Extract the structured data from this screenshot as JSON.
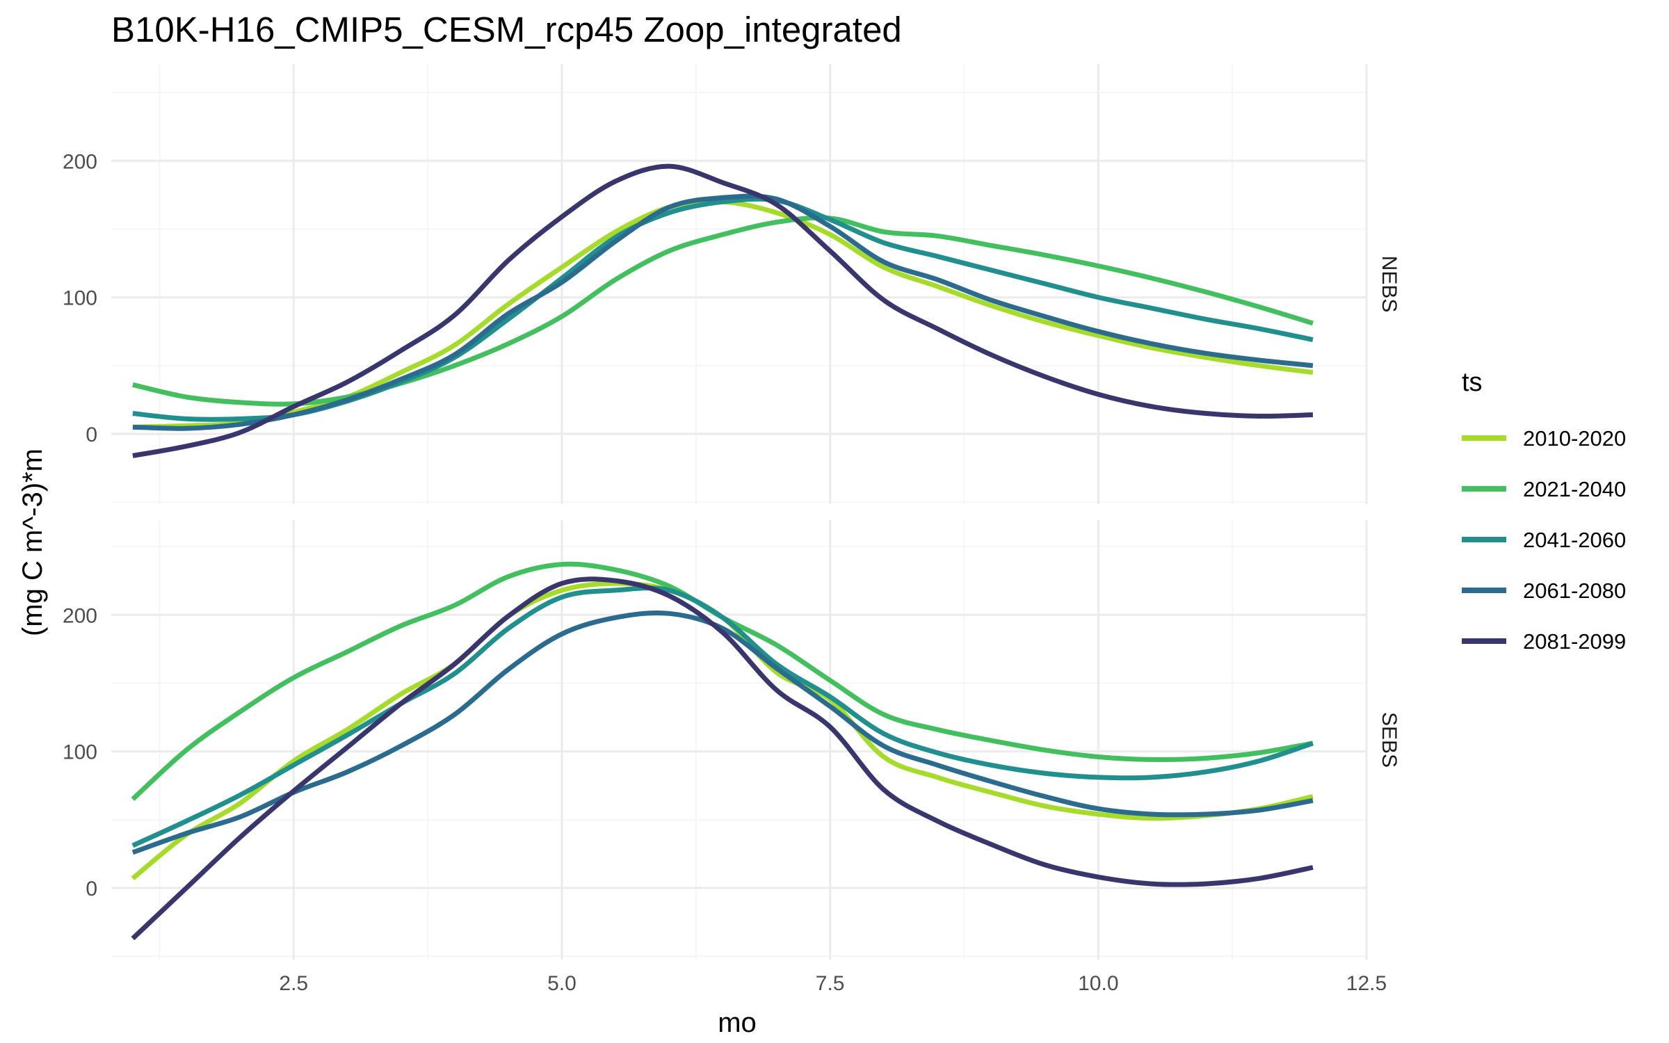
{
  "chart_data": {
    "type": "line",
    "title": "B10K-H16_CMIP5_CESM_rcp45 Zoop_integrated",
    "xlabel": "mo",
    "ylabel": "(mg C m^-3)*m",
    "xlim": [
      0.8,
      12.5
    ],
    "ylim": [
      -50,
      250
    ],
    "x_ticks": [
      2.5,
      5.0,
      7.5,
      10.0,
      12.5
    ],
    "x_tick_labels": [
      "2.5",
      "5.0",
      "7.5",
      "10.0",
      "12.5"
    ],
    "y_ticks": [
      0,
      100,
      200
    ],
    "y_tick_labels": [
      "0",
      "100",
      "200"
    ],
    "grid": true,
    "legend": {
      "title": "ts",
      "position": "right"
    },
    "x": [
      1,
      1.5,
      2,
      2.5,
      3,
      3.5,
      4,
      4.5,
      5,
      5.5,
      6,
      6.5,
      7,
      7.5,
      8,
      8.5,
      9,
      9.5,
      10,
      10.5,
      11,
      11.5,
      12
    ],
    "panels": [
      {
        "label": "NEBS",
        "series": [
          {
            "name": "2010-2020",
            "color": "#a6db2c",
            "values": [
              5,
              6,
              8,
              16,
              27,
              45,
              65,
              95,
              122,
              148,
              166,
              170,
              162,
              146,
              122,
              108,
              94,
              82,
              72,
              63,
              56,
              50,
              45
            ]
          },
          {
            "name": "2021-2040",
            "color": "#43bf5f",
            "values": [
              36,
              27,
              23,
              22,
              27,
              37,
              50,
              66,
              86,
              113,
              134,
              146,
              155,
              158,
              148,
              145,
              138,
              131,
              123,
              114,
              104,
              93,
              81
            ]
          },
          {
            "name": "2041-2060",
            "color": "#218f8d",
            "values": [
              15,
              11,
              11,
              14,
              24,
              38,
              56,
              84,
              114,
              144,
              162,
              170,
              171,
              157,
              140,
              130,
              120,
              110,
              100,
              92,
              84,
              77,
              69
            ]
          },
          {
            "name": "2061-2080",
            "color": "#2b6b8e",
            "values": [
              5,
              4,
              7,
              14,
              25,
              40,
              58,
              88,
              111,
              141,
              166,
              173,
              172,
              152,
              126,
              113,
              98,
              86,
              75,
              66,
              59,
              54,
              50
            ]
          },
          {
            "name": "2081-2099",
            "color": "#39356d",
            "values": [
              -16,
              -9,
              1,
              20,
              38,
              61,
              87,
              127,
              159,
              185,
              196,
              184,
              168,
              134,
              98,
              77,
              58,
              42,
              29,
              20,
              15,
              13,
              14
            ]
          }
        ]
      },
      {
        "label": "SEBS",
        "series": [
          {
            "name": "2010-2020",
            "color": "#a6db2c",
            "values": [
              7,
              39,
              62,
              93,
              116,
              142,
              164,
              199,
              218,
              223,
              218,
              198,
              158,
              138,
              96,
              81,
              70,
              60,
              54,
              51,
              53,
              58,
              67
            ]
          },
          {
            "name": "2021-2040",
            "color": "#43bf5f",
            "values": [
              65,
              101,
              129,
              154,
              173,
              192,
              207,
              228,
              237,
              233,
              221,
              198,
              178,
              152,
              127,
              116,
              108,
              101,
              96,
              94,
              95,
              99,
              106
            ]
          },
          {
            "name": "2041-2060",
            "color": "#218f8d",
            "values": [
              31,
              49,
              68,
              90,
              112,
              135,
              157,
              190,
              213,
              218,
              218,
              198,
              164,
              140,
              113,
              99,
              90,
              84,
              81,
              81,
              85,
              93,
              106
            ]
          },
          {
            "name": "2061-2080",
            "color": "#2b6b8e",
            "values": [
              26,
              40,
              52,
              70,
              85,
              104,
              127,
              160,
              186,
              198,
              201,
              190,
              161,
              133,
              104,
              90,
              78,
              67,
              58,
              54,
              54,
              57,
              64
            ]
          },
          {
            "name": "2081-2099",
            "color": "#39356d",
            "values": [
              -37,
              0,
              37,
              71,
              103,
              135,
              164,
              199,
              223,
              225,
              214,
              187,
              145,
              118,
              72,
              49,
              32,
              17,
              8,
              3,
              3,
              7,
              15
            ]
          }
        ]
      }
    ]
  }
}
